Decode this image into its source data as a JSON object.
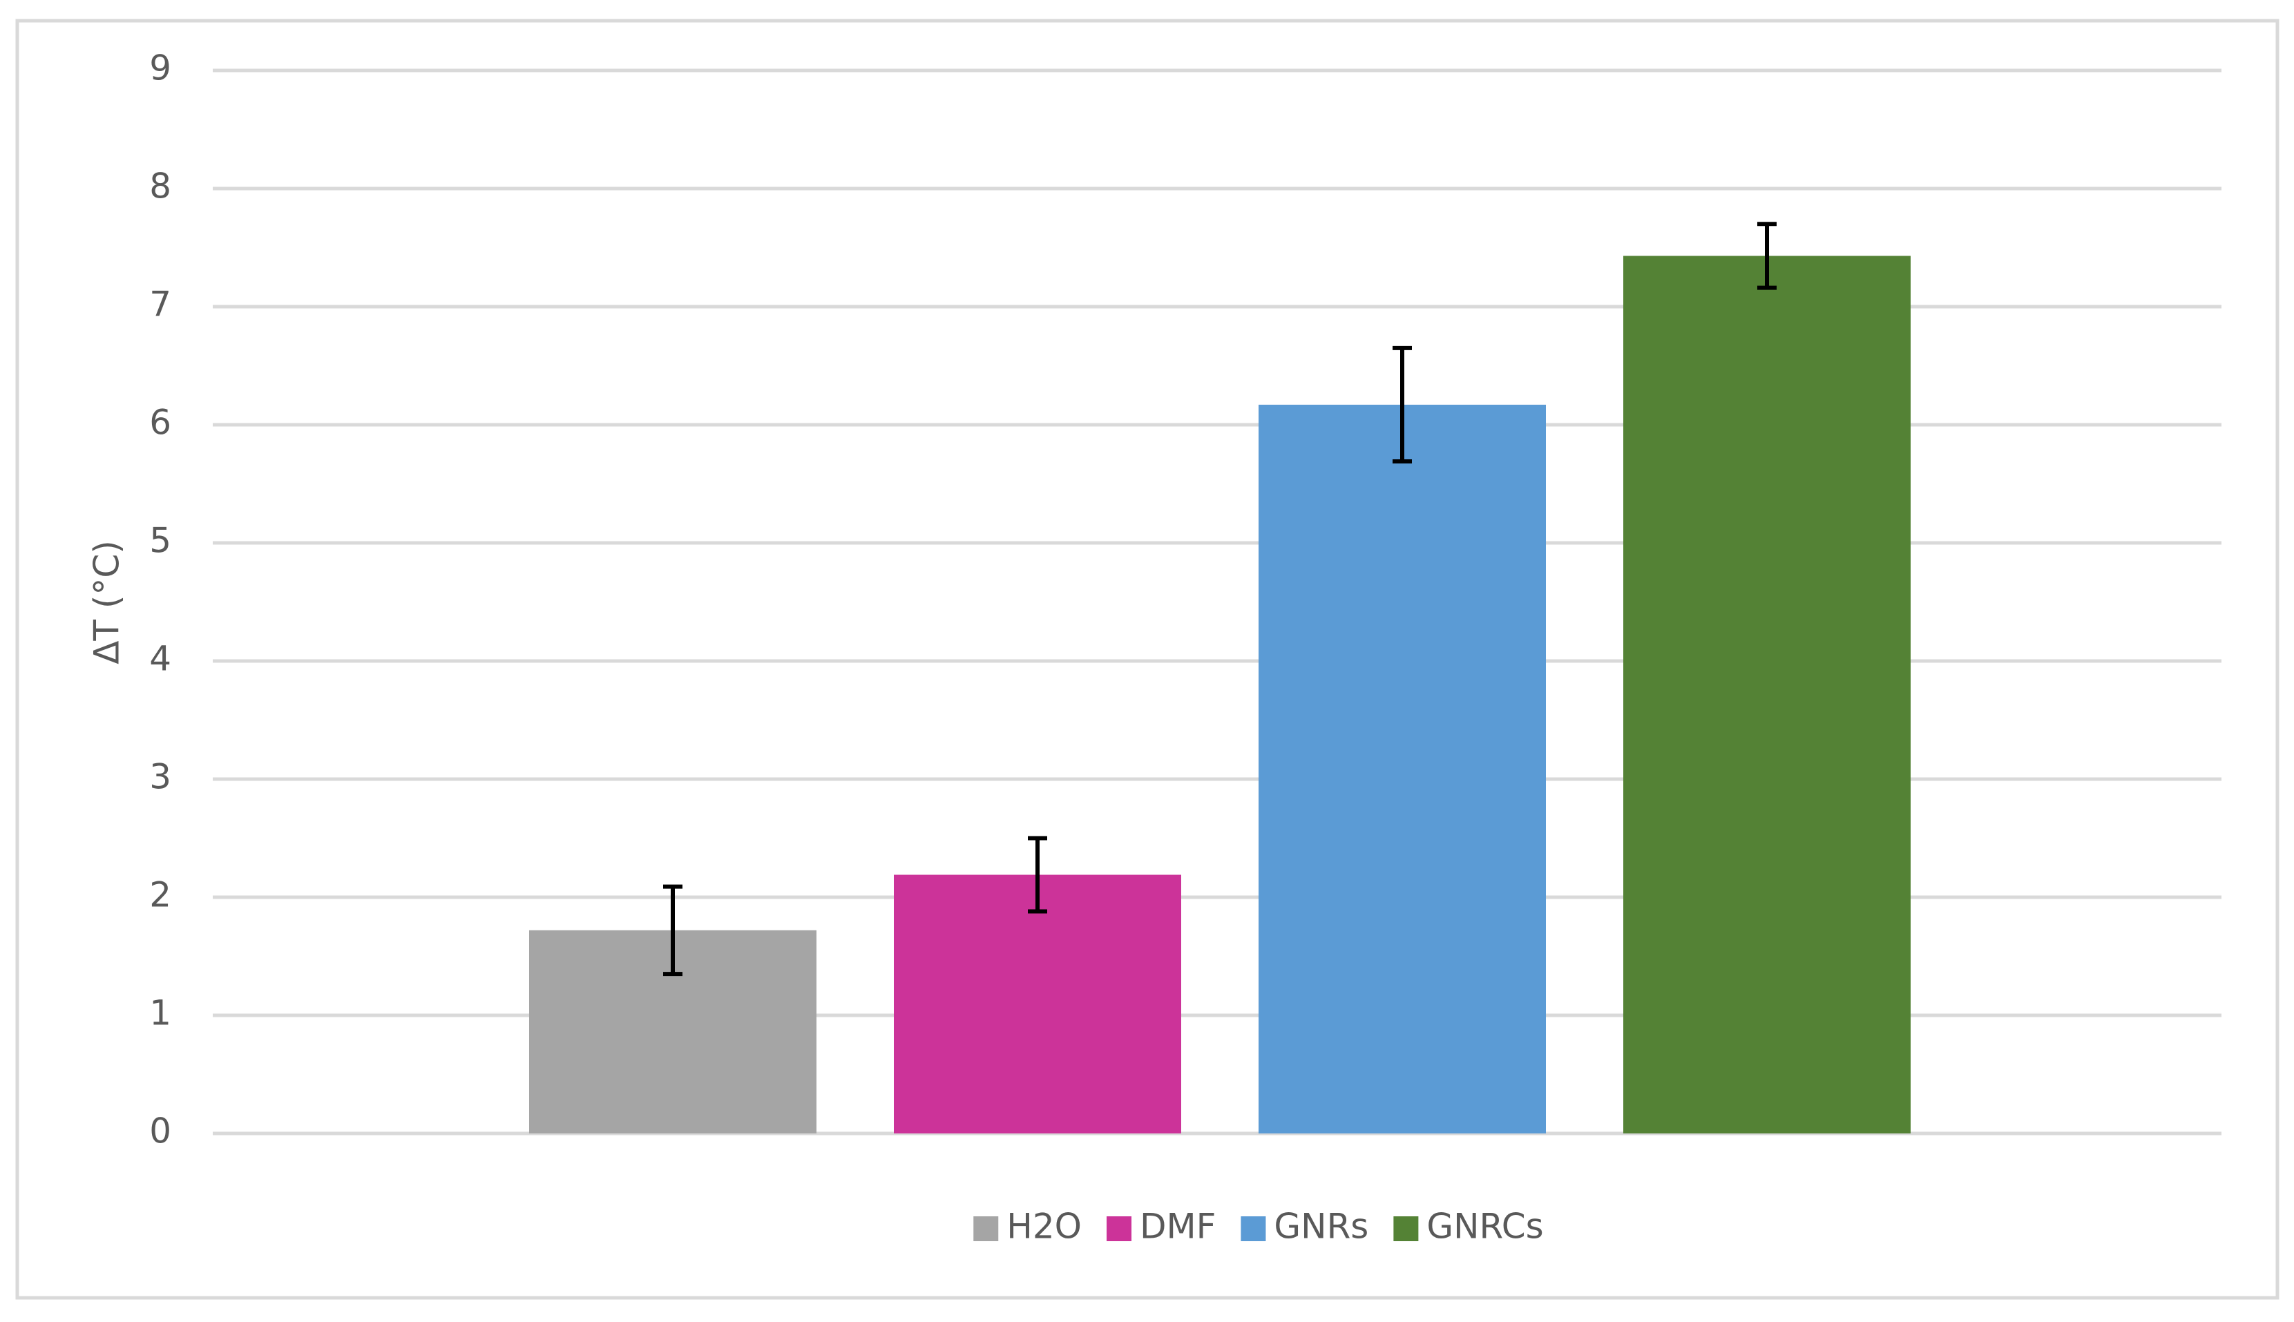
{
  "chart_data": {
    "type": "bar",
    "y_label": "ΔT (°C)",
    "ylim": [
      0,
      9
    ],
    "yticks": [
      0,
      1,
      2,
      3,
      4,
      5,
      6,
      7,
      8,
      9
    ],
    "grid": true,
    "legend": "bottom",
    "series": [
      {
        "name": "H2O",
        "color": "#a5a5a5",
        "values": [
          1.72
        ],
        "errors": [
          0.37
        ]
      },
      {
        "name": "DMF",
        "color": "#cc3399",
        "values": [
          2.19
        ],
        "errors": [
          0.31
        ]
      },
      {
        "name": "GNRs",
        "color": "#5b9bd5",
        "values": [
          6.17
        ],
        "errors": [
          0.48
        ]
      },
      {
        "name": "GNRCs",
        "color": "#548235",
        "values": [
          7.43
        ],
        "errors": [
          0.27
        ]
      }
    ]
  }
}
